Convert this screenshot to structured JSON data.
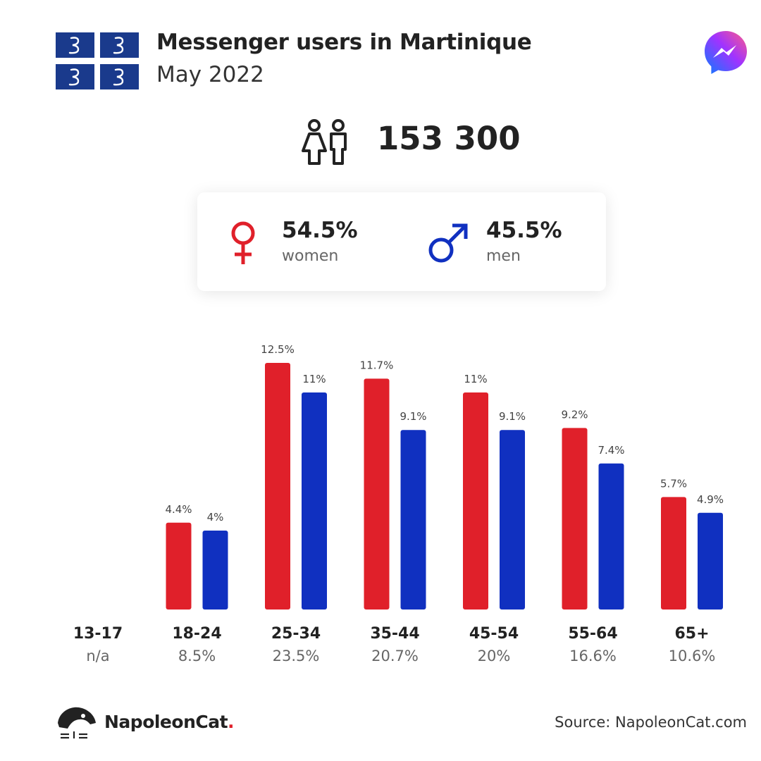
{
  "header": {
    "title": "Messenger users in Martinique",
    "subtitle": "May 2022",
    "app_icon": "messenger-icon",
    "flag_icon": "martinique-flag-icon"
  },
  "totals": {
    "users": "153 300",
    "icon": "people-icon"
  },
  "gender": {
    "women": {
      "value": "54.5%",
      "label": "women",
      "icon": "female-symbol-icon",
      "color": "#e0202a"
    },
    "men": {
      "value": "45.5%",
      "label": "men",
      "icon": "male-symbol-icon",
      "color": "#1030c0"
    }
  },
  "chart_data": {
    "type": "bar",
    "categories": [
      "13-17",
      "18-24",
      "25-34",
      "35-44",
      "45-54",
      "55-64",
      "65+"
    ],
    "category_totals": [
      "n/a",
      "8.5%",
      "23.5%",
      "20.7%",
      "20%",
      "16.6%",
      "10.6%"
    ],
    "series": [
      {
        "name": "women",
        "color": "#e0202a",
        "values": [
          null,
          4.4,
          12.5,
          11.7,
          11,
          9.2,
          5.7
        ],
        "labels": [
          "",
          "4.4%",
          "12.5%",
          "11.7%",
          "11%",
          "9.2%",
          "5.7%"
        ]
      },
      {
        "name": "men",
        "color": "#1030c0",
        "values": [
          null,
          4,
          11,
          9.1,
          9.1,
          7.4,
          4.9
        ],
        "labels": [
          "",
          "4%",
          "11%",
          "9.1%",
          "9.1%",
          "7.4%",
          "4.9%"
        ]
      }
    ],
    "ylim": [
      0,
      12.5
    ],
    "grid": false,
    "legend": "none"
  },
  "footer": {
    "brand_name": "NapoleonCat",
    "brand_dot": ".",
    "brand_icon": "napoleoncat-logo-icon",
    "source": "Source: NapoleonCat.com"
  }
}
